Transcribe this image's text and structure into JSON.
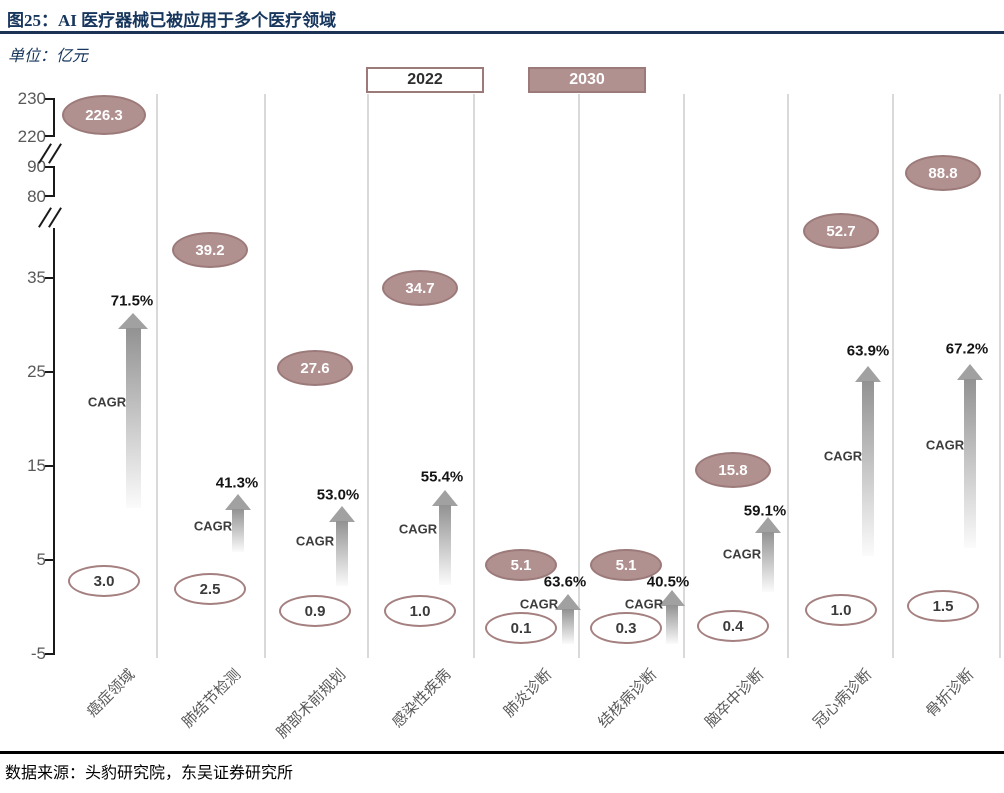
{
  "page": {
    "title": "图25：AI 医疗器械已被应用于多个医疗领域",
    "unit_label": "单位：亿元",
    "source_note": "数据来源：头豹研究院，东吴证券研究所"
  },
  "legend": {
    "items": [
      {
        "label": "2022",
        "style": "outline"
      },
      {
        "label": "2030",
        "style": "filled"
      }
    ]
  },
  "colors": {
    "brand_navy": "#17365d",
    "bubble_fill": "#b19090",
    "bubble_border": "#9c7a7a",
    "arrow_gray": "#a1a1a1",
    "axis_text": "#595959",
    "gridline": "#d9d9d9"
  },
  "chart_data": {
    "type": "scatter",
    "title": "AI 医疗器械已被应用于多个医疗领域",
    "unit": "亿元",
    "categories": [
      "癌症领域",
      "肺结节检测",
      "肺部术前规划",
      "感染性疾病",
      "肺炎诊断",
      "结核病诊断",
      "脑卒中诊断",
      "冠心病诊断",
      "骨折诊断"
    ],
    "series": [
      {
        "name": "2022",
        "values": [
          "3.0",
          "2.5",
          "0.9",
          "1.0",
          "0.1",
          "0.3",
          "0.4",
          "1.0",
          "1.5"
        ]
      },
      {
        "name": "2030",
        "values": [
          "226.3",
          "39.2",
          "27.6",
          "34.7",
          "5.1",
          "5.1",
          "15.8",
          "52.7",
          "88.8"
        ]
      }
    ],
    "cagr_label": "CAGR",
    "cagr_values": [
      "71.5%",
      "41.3%",
      "53.0%",
      "55.4%",
      "63.6%",
      "40.5%",
      "59.1%",
      "63.9%",
      "67.2%"
    ],
    "y_ticks": [
      230,
      220,
      90,
      80,
      35,
      25,
      15,
      5,
      -5
    ],
    "axis_breaks": [
      [
        220,
        90
      ],
      [
        80,
        40
      ]
    ],
    "ylim": [
      -5,
      230
    ],
    "grid": "vertical",
    "legend_position": "top-center"
  }
}
